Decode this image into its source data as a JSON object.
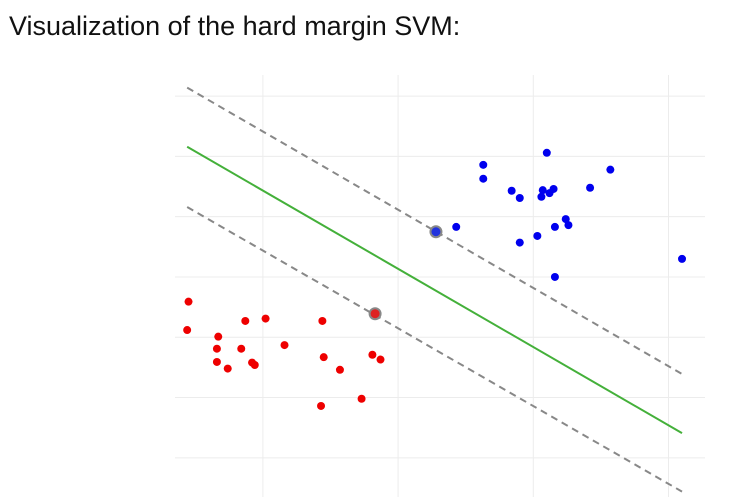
{
  "chart_data": {
    "type": "scatter",
    "title": "Visualization of the hard margin SVM:",
    "xlim": [
      -0.65,
      3.27
    ],
    "ylim": [
      -0.6,
      6.35
    ],
    "xticks": [
      0,
      1,
      2,
      3
    ],
    "yticks": [
      0,
      1,
      2,
      3,
      4,
      5,
      6
    ],
    "grid": true,
    "grid_color": "#ececec",
    "series": [
      {
        "color": "#0000ee",
        "x": [
          1.63,
          1.63,
          2.1,
          2.57,
          1.84,
          1.9,
          2.07,
          2.12,
          2.15,
          2.06,
          2.42,
          1.43,
          2.24,
          2.26,
          2.16,
          2.03,
          1.9,
          2.16,
          3.1
        ],
        "values": [
          4.86,
          4.63,
          5.06,
          4.78,
          4.43,
          4.31,
          4.44,
          4.39,
          4.46,
          4.33,
          4.48,
          3.83,
          3.96,
          3.86,
          3.83,
          3.68,
          3.57,
          3.0,
          3.3
        ]
      },
      {
        "color": "#ee0000",
        "x": [
          -0.55,
          -0.56,
          -0.33,
          -0.34,
          -0.34,
          -0.26,
          -0.16,
          -0.13,
          0.02,
          -0.08,
          -0.06,
          0.16,
          0.44,
          0.45,
          0.57,
          0.81,
          0.87,
          0.43,
          0.73
        ],
        "values": [
          2.59,
          2.12,
          2.01,
          1.81,
          1.59,
          1.48,
          1.81,
          2.27,
          2.31,
          1.58,
          1.54,
          1.87,
          2.27,
          1.67,
          1.46,
          1.71,
          1.63,
          0.86,
          0.98
        ]
      },
      {
        "color": "#2233dd",
        "outline": "#888888",
        "x": [
          1.28
        ],
        "values": [
          3.75
        ]
      },
      {
        "color": "#dd2222",
        "outline": "#888888",
        "x": [
          0.83
        ],
        "values": [
          2.39
        ]
      }
    ],
    "lines": [
      {
        "color": "#44b03a",
        "dashed": false,
        "x": [
          -0.56,
          3.1
        ],
        "values": [
          5.16,
          0.41
        ]
      },
      {
        "color": "#888888",
        "dashed": true,
        "x": [
          -0.56,
          3.1
        ],
        "values": [
          6.14,
          1.39
        ]
      },
      {
        "color": "#888888",
        "dashed": true,
        "x": [
          -0.56,
          3.1
        ],
        "values": [
          4.16,
          -0.56
        ]
      }
    ]
  }
}
